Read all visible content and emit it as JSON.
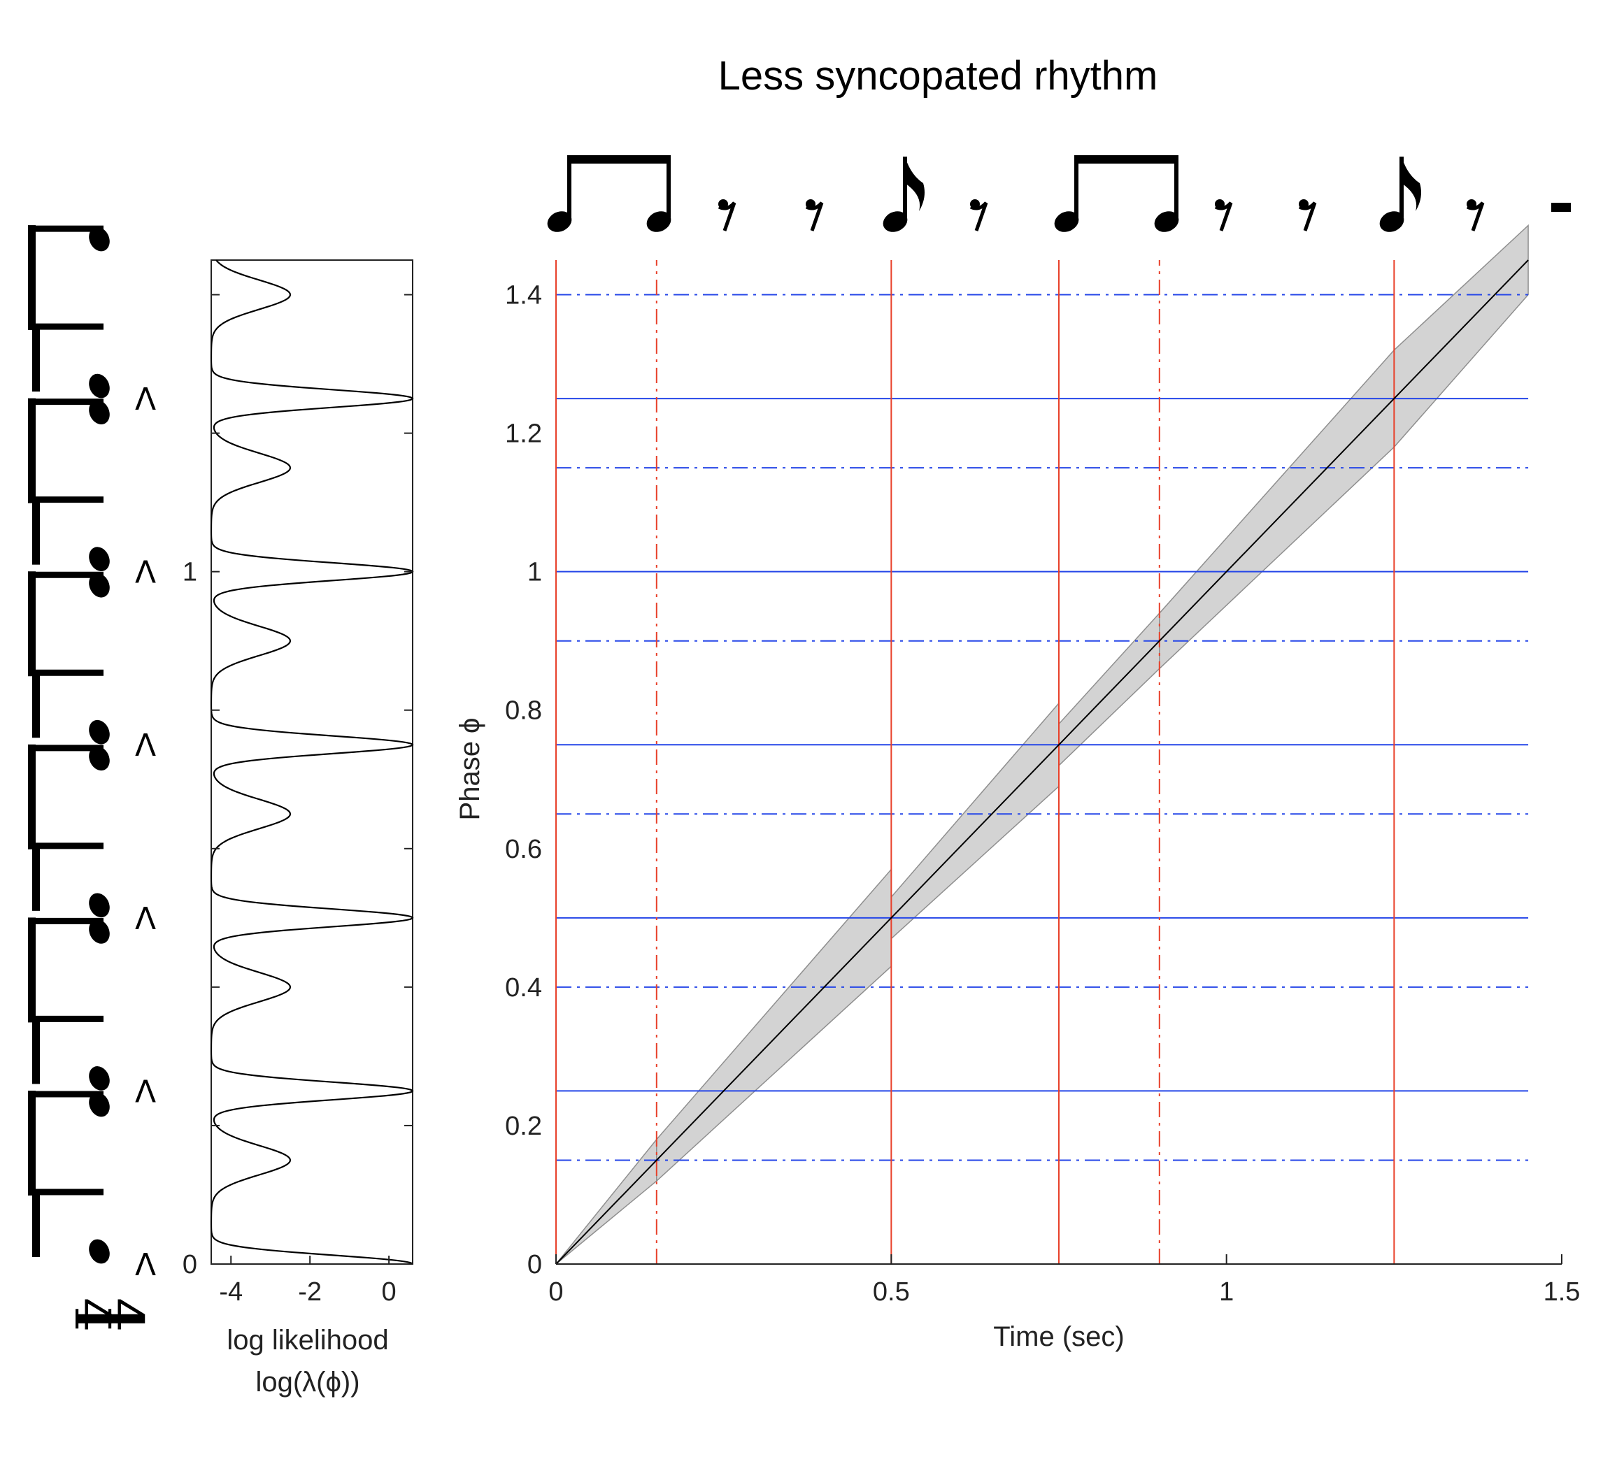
{
  "chart_data": [
    {
      "type": "line",
      "title": "Less syncopated rhythm",
      "xlabel": "Time (sec)",
      "ylabel": "Phase ϕ",
      "xlim": [
        0,
        1.5
      ],
      "ylim": [
        0,
        1.45
      ],
      "xticks": [
        "0",
        "0.5",
        "1",
        "1.5"
      ],
      "yticks": [
        "0",
        "0.2",
        "0.4",
        "0.6",
        "0.8",
        "1",
        "1.2",
        "1.4"
      ],
      "series": [
        {
          "x": [
            0,
            1.45
          ],
          "y": [
            0,
            1.45
          ],
          "color": "#000000"
        }
      ],
      "band": {
        "color": "#d3d3d3",
        "segments": [
          {
            "x": [
              0,
              0.15
            ],
            "lower": [
              0,
              0.12
            ],
            "upper": [
              0,
              0.18
            ]
          },
          {
            "x": [
              0.15,
              0.5
            ],
            "lower": [
              0.12,
              0.43
            ],
            "upper": [
              0.18,
              0.57
            ]
          },
          {
            "x": [
              0.5,
              0.75
            ],
            "lower": [
              0.47,
              0.69
            ],
            "upper": [
              0.53,
              0.81
            ]
          },
          {
            "x": [
              0.75,
              0.9
            ],
            "lower": [
              0.72,
              0.86
            ],
            "upper": [
              0.78,
              0.94
            ]
          },
          {
            "x": [
              0.9,
              1.25
            ],
            "lower": [
              0.86,
              1.18
            ],
            "upper": [
              0.94,
              1.32
            ]
          },
          {
            "x": [
              1.25,
              1.45
            ],
            "lower": [
              1.18,
              1.4
            ],
            "upper": [
              1.32,
              1.5
            ]
          }
        ]
      },
      "vlines": [
        {
          "x": 0,
          "style": "solid",
          "color": "#e8402a"
        },
        {
          "x": 0.15,
          "style": "dashdot",
          "color": "#e8402a"
        },
        {
          "x": 0.5,
          "style": "solid",
          "color": "#e8402a"
        },
        {
          "x": 0.75,
          "style": "solid",
          "color": "#e8402a"
        },
        {
          "x": 0.9,
          "style": "dashdot",
          "color": "#e8402a"
        },
        {
          "x": 1.25,
          "style": "solid",
          "color": "#e8402a"
        }
      ],
      "hlines": [
        {
          "y": 0,
          "style": "solid",
          "color": "#2546e8"
        },
        {
          "y": 0.15,
          "style": "dashdot",
          "color": "#2546e8"
        },
        {
          "y": 0.25,
          "style": "solid",
          "color": "#2546e8"
        },
        {
          "y": 0.4,
          "style": "dashdot",
          "color": "#2546e8"
        },
        {
          "y": 0.5,
          "style": "solid",
          "color": "#2546e8"
        },
        {
          "y": 0.65,
          "style": "dashdot",
          "color": "#2546e8"
        },
        {
          "y": 0.75,
          "style": "solid",
          "color": "#2546e8"
        },
        {
          "y": 0.9,
          "style": "dashdot",
          "color": "#2546e8"
        },
        {
          "y": 1,
          "style": "solid",
          "color": "#2546e8"
        },
        {
          "y": 1.15,
          "style": "dashdot",
          "color": "#2546e8"
        },
        {
          "y": 1.25,
          "style": "solid",
          "color": "#2546e8"
        },
        {
          "y": 1.4,
          "style": "dashdot",
          "color": "#2546e8"
        }
      ],
      "rhythm_notation": [
        "beamed-eighths",
        "sixteenth-rest",
        "sixteenth-rest",
        "eighth-note",
        "sixteenth-rest",
        "beamed-eighths",
        "sixteenth-rest",
        "sixteenth-rest",
        "eighth-note",
        "sixteenth-rest",
        "barline"
      ]
    },
    {
      "type": "line",
      "xlabel_line1": "log likelihood",
      "xlabel_line2": "log(λ(ϕ))",
      "xlim": [
        -4.5,
        0.6
      ],
      "ylim": [
        0,
        1.45
      ],
      "xticks": [
        "-4",
        "-2",
        "0"
      ],
      "yticks": [
        "0",
        "1"
      ],
      "series": [
        {
          "description_of_shape": "periodic log likelihood; period 0.25 in phase",
          "period": 0.25,
          "peaks": [
            0,
            0.25,
            0.5,
            0.75,
            1.0,
            1.25
          ],
          "peak_value": 0.6,
          "secondary_bumps": [
            0.15,
            0.4,
            0.65,
            0.9,
            1.15,
            1.4
          ],
          "secondary_value": -2.5,
          "minimum_value": -4.5,
          "color": "#000000"
        }
      ]
    }
  ],
  "meter": {
    "time_signature_top": "4",
    "time_signature_bottom": "4",
    "accent_symbol": "Λ",
    "beat_phases": [
      0,
      0.25,
      0.5,
      0.75,
      1.0,
      1.25
    ],
    "beat_icon": "beamed-eighth-pair-icon"
  }
}
